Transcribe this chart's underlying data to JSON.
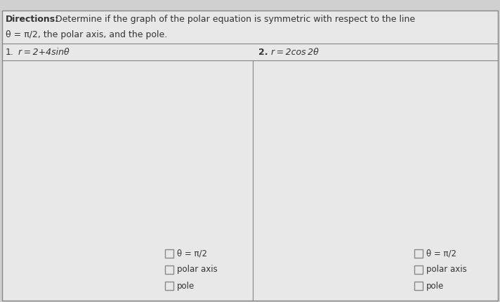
{
  "directions_bold": "Directions:",
  "directions_text": " Determine if the graph of the polar equation is symmetric with respect to the line",
  "directions_line2": "θ = π/2, the polar axis, and the pole.",
  "problem1_num": "1.",
  "problem1_eq": " r = 2+4sinθ",
  "problem2_num": "2.",
  "problem2_eq": " r = 2cos 2θ",
  "checkboxes": [
    "θ = π/2",
    "polar axis",
    "pole"
  ],
  "bg_outer": "#d0d0d0",
  "bg_inner": "#e8e8e8",
  "bg_content": "#e8e8e8",
  "border_color": "#888888",
  "text_color": "#333333",
  "checkbox_border": "#888888",
  "checkbox_face": "#e8e8e8"
}
